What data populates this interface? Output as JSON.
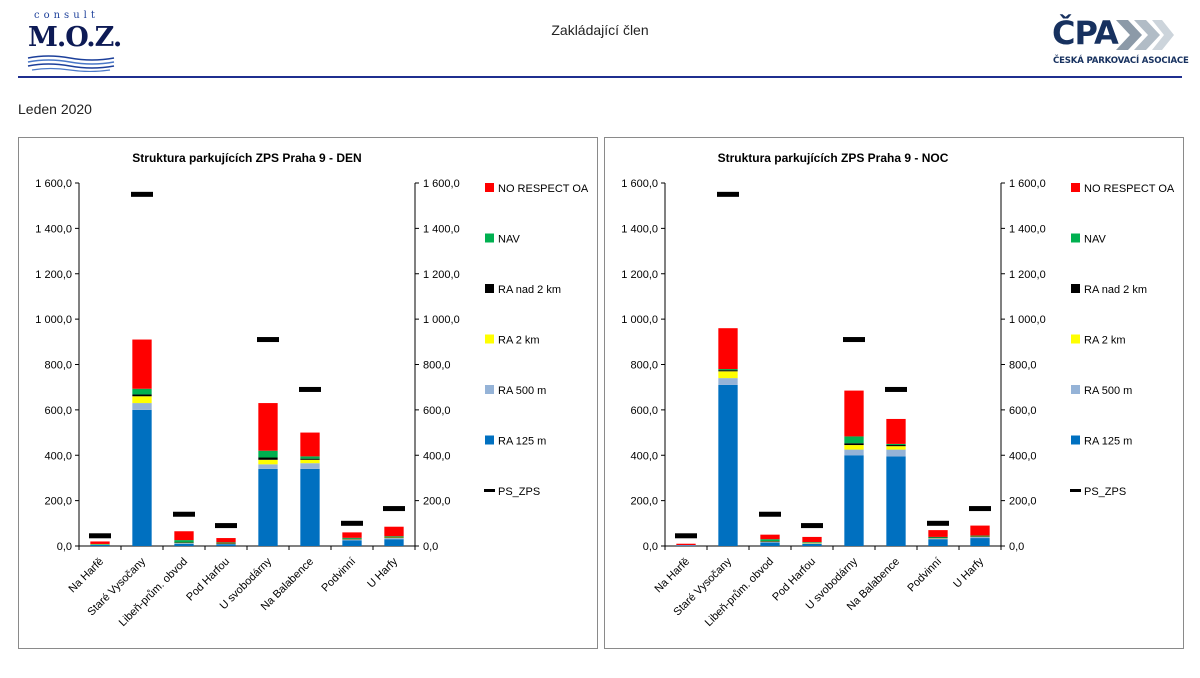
{
  "header": {
    "title": "Zakládající člen",
    "logo_left": {
      "top": "consult",
      "main": "M.O.Z."
    },
    "logo_right": {
      "main": "ČPA",
      "sub": "ČESKÁ PARKOVACÍ ASOCIACE"
    }
  },
  "period": "Leden 2020",
  "colors": {
    "NO RESPECT OA": "#ff0000",
    "NAV": "#00b050",
    "RA nad 2 km": "#000000",
    "RA 2 km": "#ffff00",
    "RA 500 m": "#95b3d7",
    "RA 125 m": "#0070c0",
    "PS_ZPS": "#000000"
  },
  "chart_data": [
    {
      "type": "bar",
      "stacked": true,
      "title": "Struktura parkujících ZPS Praha 9 - DEN",
      "categories": [
        "Na Harfě",
        "Staré Vysočany",
        "Libeň-prům. obvod",
        "Pod Harfou",
        "U svobodárny",
        "Na Balabence",
        "Podvinní",
        "U Harfy"
      ],
      "series": [
        {
          "name": "RA 125 m",
          "values": [
            5,
            600,
            10,
            8,
            340,
            340,
            25,
            30
          ]
        },
        {
          "name": "RA 500 m",
          "values": [
            2,
            30,
            3,
            3,
            20,
            25,
            4,
            5
          ]
        },
        {
          "name": "RA 2 km",
          "values": [
            1,
            30,
            2,
            1,
            20,
            15,
            2,
            3
          ]
        },
        {
          "name": "RA nad 2 km",
          "values": [
            0,
            8,
            1,
            1,
            10,
            5,
            1,
            1
          ]
        },
        {
          "name": "NAV",
          "values": [
            1,
            25,
            10,
            3,
            30,
            10,
            4,
            4
          ]
        },
        {
          "name": "NO RESPECT OA",
          "values": [
            11,
            217,
            39,
            19,
            210,
            105,
            24,
            42
          ]
        }
      ],
      "line_markers": {
        "name": "PS_ZPS",
        "values": [
          45,
          1550,
          140,
          90,
          910,
          690,
          100,
          165
        ]
      },
      "ylim": [
        0,
        1600
      ],
      "y_ticks": [
        "0,0",
        "200,0",
        "400,0",
        "600,0",
        "800,0",
        "1 000,0",
        "1 200,0",
        "1 400,0",
        "1 600,0"
      ],
      "legend_position": "right"
    },
    {
      "type": "bar",
      "stacked": true,
      "title": "Struktura parkujících ZPS Praha 9 - NOC",
      "categories": [
        "Na Harfě",
        "Staré Vysočany",
        "Libeň-prům. obvod",
        "Pod Harfou",
        "U svobodárny",
        "Na Balabence",
        "Podvinní",
        "U Harfy"
      ],
      "series": [
        {
          "name": "RA 125 m",
          "values": [
            3,
            710,
            15,
            10,
            400,
            395,
            30,
            35
          ]
        },
        {
          "name": "RA 500 m",
          "values": [
            1,
            30,
            4,
            3,
            25,
            30,
            4,
            5
          ]
        },
        {
          "name": "RA 2 km",
          "values": [
            0,
            30,
            2,
            1,
            20,
            15,
            2,
            2
          ]
        },
        {
          "name": "RA nad 2 km",
          "values": [
            0,
            5,
            1,
            0,
            8,
            5,
            1,
            1
          ]
        },
        {
          "name": "NAV",
          "values": [
            0,
            5,
            8,
            3,
            30,
            5,
            3,
            3
          ]
        },
        {
          "name": "NO RESPECT OA",
          "values": [
            6,
            180,
            20,
            23,
            202,
            110,
            30,
            44
          ]
        }
      ],
      "line_markers": {
        "name": "PS_ZPS",
        "values": [
          45,
          1550,
          140,
          90,
          910,
          690,
          100,
          165
        ]
      },
      "ylim": [
        0,
        1600
      ],
      "y_ticks": [
        "0,0",
        "200,0",
        "400,0",
        "600,0",
        "800,0",
        "1 000,0",
        "1 200,0",
        "1 400,0",
        "1 600,0"
      ],
      "legend_position": "right"
    }
  ]
}
